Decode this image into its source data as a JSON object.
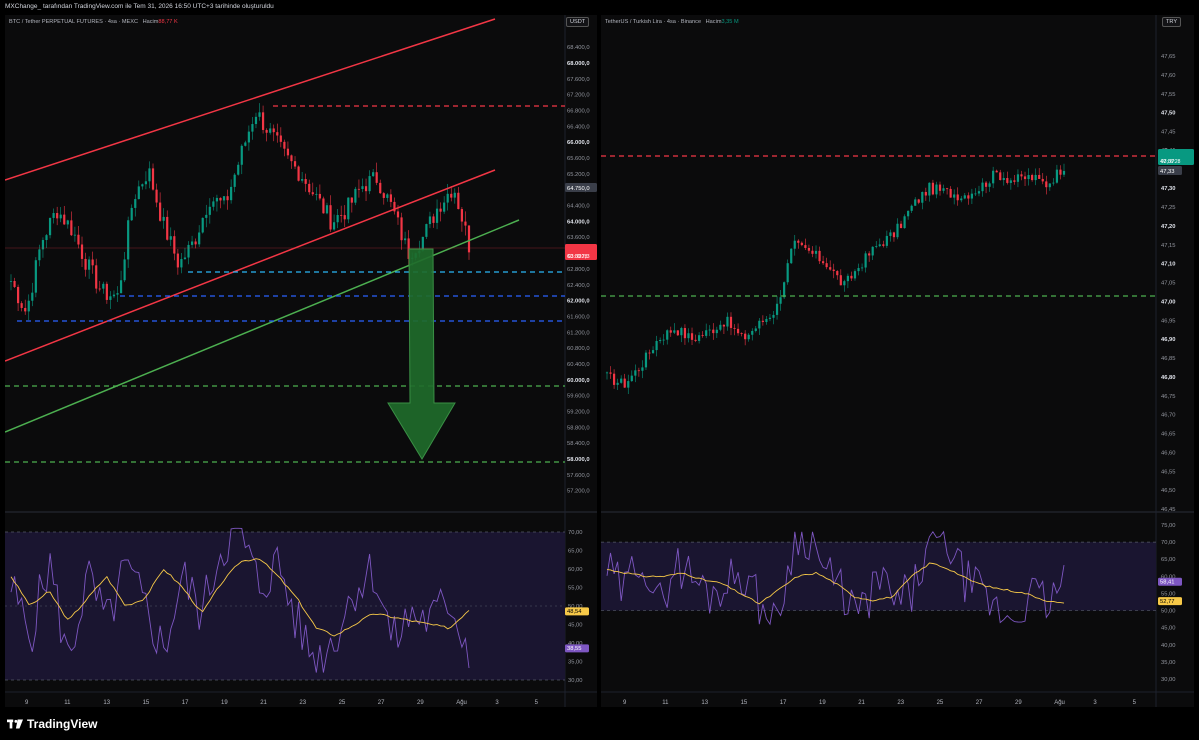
{
  "header": {
    "caption": "MXChange_ tarafından TradingView.com ile Tem 31, 2026 16:50 UTC+3 tarihinde oluşturuldu"
  },
  "brand": {
    "name": "TradingView"
  },
  "colors": {
    "up": "#089981",
    "down": "#f23645",
    "rsi": "#7e57c2",
    "rsi_ma": "#f7c948",
    "bg": "#0b0b0c"
  },
  "left_chart": {
    "legend_text": "BTC / Tether PERPETUAL FUTURES · 4sa · MEXC",
    "volume_label": "Hacim",
    "volume_value": "88,77 K",
    "currency": "USDT",
    "price_axis": [
      "68.400,0",
      "68.000,0",
      "67.600,0",
      "67.200,0",
      "66.800,0",
      "66.400,0",
      "66.000,0",
      "65.600,0",
      "65.200,0",
      "64.800,0",
      "64.400,0",
      "64.000,0",
      "63.600,0",
      "63.200,0",
      "62.800,0",
      "62.400,0",
      "62.000,0",
      "61.600,0",
      "61.200,0",
      "60.800,0",
      "60.400,0",
      "60.000,0",
      "59.600,0",
      "59.200,0",
      "58.800,0",
      "58.400,0",
      "58.000,0",
      "57.600,0",
      "57.200,0"
    ],
    "bold_prices": [
      "68.000,0",
      "66.000,0",
      "64.000,0",
      "62.000,0",
      "60.000,0",
      "58.000,0"
    ],
    "marker_price": "64.750,0",
    "last_price": "63.337,3",
    "countdown": "03:09:28",
    "rsi_axis": [
      "70,00",
      "65,00",
      "60,00",
      "55,00",
      "50,00",
      "45,00",
      "40,00",
      "35,00",
      "30,00"
    ],
    "rsi_ma_value": "48,54",
    "rsi_value": "38,55",
    "time_axis": [
      "9",
      "11",
      "13",
      "15",
      "17",
      "19",
      "21",
      "23",
      "25",
      "27",
      "29",
      "Ağu",
      "3",
      "5"
    ]
  },
  "right_chart": {
    "legend_text": "TetherUS / Turkish Lira · 4sa · Binance",
    "volume_label": "Hacim",
    "volume_value": "3,35 M",
    "currency": "TRY",
    "price_axis": [
      "47,65",
      "47,60",
      "47,55",
      "47,50",
      "47,45",
      "47,40",
      "47,35",
      "47,30",
      "47,25",
      "47,20",
      "47,15",
      "47,10",
      "47,05",
      "47,00",
      "46,95",
      "46,90",
      "46,85",
      "46,80",
      "46,75",
      "46,70",
      "46,65",
      "46,60",
      "46,55",
      "46,50",
      "46,45"
    ],
    "bold_prices": [
      "47,50",
      "47,40",
      "47,30",
      "47,20",
      "47,10",
      "47,00",
      "46,90",
      "46,80"
    ],
    "last_price": "47,37",
    "countdown": "03:09:28",
    "marker_price": "47,33",
    "rsi_axis": [
      "75,00",
      "70,00",
      "65,00",
      "60,00",
      "55,00",
      "50,00",
      "45,00",
      "40,00",
      "35,00",
      "30,00"
    ],
    "rsi_value": "58,41",
    "rsi_ma_value": "52,77",
    "time_axis": [
      "9",
      "11",
      "13",
      "15",
      "17",
      "19",
      "21",
      "23",
      "25",
      "27",
      "29",
      "Ağu",
      "3",
      "5"
    ]
  }
}
